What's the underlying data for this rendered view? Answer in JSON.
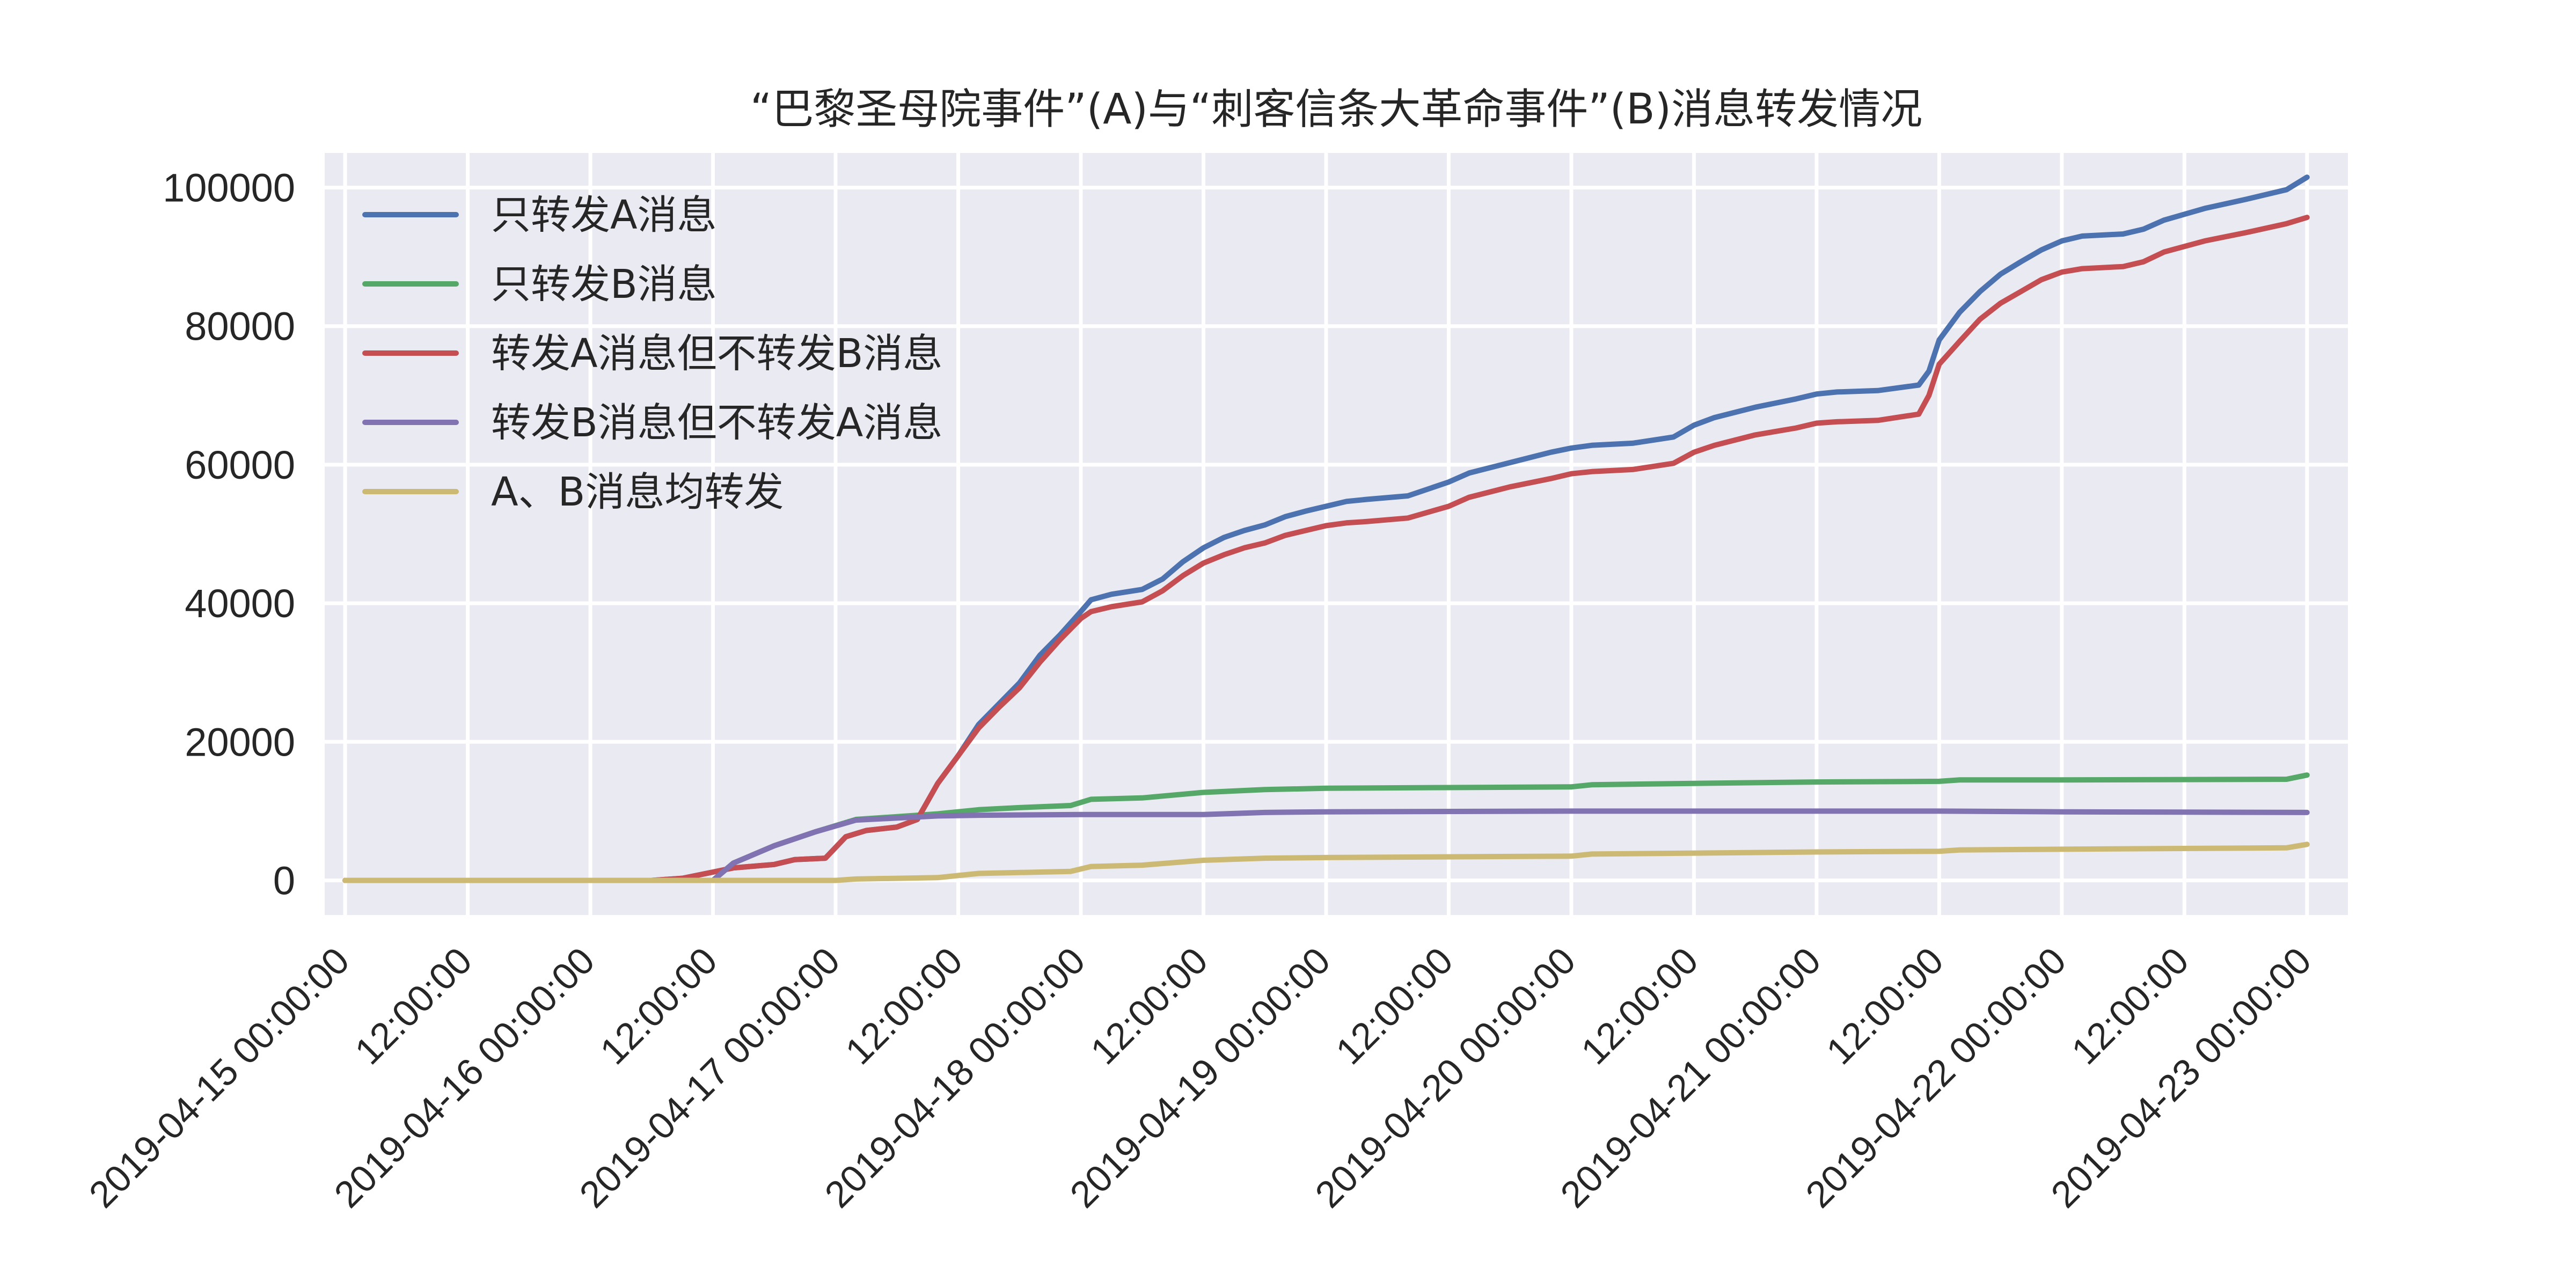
{
  "chart_data": {
    "type": "line",
    "title": "“巴黎圣母院事件”(A)与“刺客信条大革命事件”(B)消息转发情况",
    "xlabel": "",
    "ylabel": "",
    "x_range": [
      "2019-04-14 22:00:00",
      "2019-04-23 04:00:00"
    ],
    "ylim": [
      -5000,
      105000
    ],
    "grid": true,
    "legend_position": "upper-left",
    "background": "#eaeaf2",
    "x_ticks": [
      {
        "t": "2019-04-15 00:00:00",
        "label": "2019-04-15 00:00:00"
      },
      {
        "t": "2019-04-15 12:00:00",
        "label": "12:00:00"
      },
      {
        "t": "2019-04-16 00:00:00",
        "label": "2019-04-16 00:00:00"
      },
      {
        "t": "2019-04-16 12:00:00",
        "label": "12:00:00"
      },
      {
        "t": "2019-04-17 00:00:00",
        "label": "2019-04-17 00:00:00"
      },
      {
        "t": "2019-04-17 12:00:00",
        "label": "12:00:00"
      },
      {
        "t": "2019-04-18 00:00:00",
        "label": "2019-04-18 00:00:00"
      },
      {
        "t": "2019-04-18 12:00:00",
        "label": "12:00:00"
      },
      {
        "t": "2019-04-19 00:00:00",
        "label": "2019-04-19 00:00:00"
      },
      {
        "t": "2019-04-19 12:00:00",
        "label": "12:00:00"
      },
      {
        "t": "2019-04-20 00:00:00",
        "label": "2019-04-20 00:00:00"
      },
      {
        "t": "2019-04-20 12:00:00",
        "label": "12:00:00"
      },
      {
        "t": "2019-04-21 00:00:00",
        "label": "2019-04-21 00:00:00"
      },
      {
        "t": "2019-04-21 12:00:00",
        "label": "12:00:00"
      },
      {
        "t": "2019-04-22 00:00:00",
        "label": "2019-04-22 00:00:00"
      },
      {
        "t": "2019-04-22 12:00:00",
        "label": "12:00:00"
      },
      {
        "t": "2019-04-23 00:00:00",
        "label": "2019-04-23 00:00:00"
      }
    ],
    "y_ticks": [
      0,
      20000,
      40000,
      60000,
      80000,
      100000
    ],
    "series": [
      {
        "name": "只转发A消息",
        "color": "#4c72b0",
        "points": [
          [
            "2019-04-15 00:00:00",
            0
          ],
          [
            "2019-04-16 06:00:00",
            0
          ],
          [
            "2019-04-16 09:00:00",
            300
          ],
          [
            "2019-04-16 12:00:00",
            1200
          ],
          [
            "2019-04-16 14:00:00",
            1800
          ],
          [
            "2019-04-16 18:00:00",
            2300
          ],
          [
            "2019-04-16 20:00:00",
            3000
          ],
          [
            "2019-04-16 23:00:00",
            3200
          ],
          [
            "2019-04-17 01:00:00",
            6300
          ],
          [
            "2019-04-17 03:00:00",
            7200
          ],
          [
            "2019-04-17 06:00:00",
            7700
          ],
          [
            "2019-04-17 08:00:00",
            8800
          ],
          [
            "2019-04-17 10:00:00",
            14000
          ],
          [
            "2019-04-17 12:00:00",
            18000
          ],
          [
            "2019-04-17 14:00:00",
            22500
          ],
          [
            "2019-04-17 16:00:00",
            25500
          ],
          [
            "2019-04-17 18:00:00",
            28500
          ],
          [
            "2019-04-17 20:00:00",
            32500
          ],
          [
            "2019-04-17 22:00:00",
            35500
          ],
          [
            "2019-04-18 00:00:00",
            38800
          ],
          [
            "2019-04-18 01:00:00",
            40500
          ],
          [
            "2019-04-18 03:00:00",
            41300
          ],
          [
            "2019-04-18 06:00:00",
            42000
          ],
          [
            "2019-04-18 08:00:00",
            43500
          ],
          [
            "2019-04-18 10:00:00",
            46000
          ],
          [
            "2019-04-18 12:00:00",
            48000
          ],
          [
            "2019-04-18 14:00:00",
            49500
          ],
          [
            "2019-04-18 16:00:00",
            50500
          ],
          [
            "2019-04-18 18:00:00",
            51300
          ],
          [
            "2019-04-18 20:00:00",
            52500
          ],
          [
            "2019-04-18 22:00:00",
            53300
          ],
          [
            "2019-04-19 00:00:00",
            54000
          ],
          [
            "2019-04-19 02:00:00",
            54700
          ],
          [
            "2019-04-19 04:00:00",
            55000
          ],
          [
            "2019-04-19 08:00:00",
            55500
          ],
          [
            "2019-04-19 12:00:00",
            57500
          ],
          [
            "2019-04-19 14:00:00",
            58800
          ],
          [
            "2019-04-19 18:00:00",
            60300
          ],
          [
            "2019-04-19 22:00:00",
            61800
          ],
          [
            "2019-04-20 00:00:00",
            62400
          ],
          [
            "2019-04-20 02:00:00",
            62800
          ],
          [
            "2019-04-20 06:00:00",
            63100
          ],
          [
            "2019-04-20 10:00:00",
            64000
          ],
          [
            "2019-04-20 12:00:00",
            65700
          ],
          [
            "2019-04-20 14:00:00",
            66800
          ],
          [
            "2019-04-20 18:00:00",
            68300
          ],
          [
            "2019-04-20 22:00:00",
            69500
          ],
          [
            "2019-04-21 00:00:00",
            70200
          ],
          [
            "2019-04-21 02:00:00",
            70500
          ],
          [
            "2019-04-21 06:00:00",
            70700
          ],
          [
            "2019-04-21 10:00:00",
            71500
          ],
          [
            "2019-04-21 11:00:00",
            73500
          ],
          [
            "2019-04-21 12:00:00",
            78000
          ],
          [
            "2019-04-21 14:00:00",
            82000
          ],
          [
            "2019-04-21 16:00:00",
            85000
          ],
          [
            "2019-04-21 18:00:00",
            87500
          ],
          [
            "2019-04-21 20:00:00",
            89300
          ],
          [
            "2019-04-21 22:00:00",
            91000
          ],
          [
            "2019-04-22 00:00:00",
            92300
          ],
          [
            "2019-04-22 02:00:00",
            93000
          ],
          [
            "2019-04-22 06:00:00",
            93300
          ],
          [
            "2019-04-22 08:00:00",
            94000
          ],
          [
            "2019-04-22 10:00:00",
            95300
          ],
          [
            "2019-04-22 14:00:00",
            97000
          ],
          [
            "2019-04-22 18:00:00",
            98300
          ],
          [
            "2019-04-22 22:00:00",
            99700
          ],
          [
            "2019-04-23 00:00:00",
            101500
          ]
        ]
      },
      {
        "name": "只转发B消息",
        "color": "#55a868",
        "points": [
          [
            "2019-04-15 00:00:00",
            0
          ],
          [
            "2019-04-16 12:00:00",
            0
          ],
          [
            "2019-04-16 14:00:00",
            2500
          ],
          [
            "2019-04-16 18:00:00",
            5000
          ],
          [
            "2019-04-16 22:00:00",
            7000
          ],
          [
            "2019-04-17 02:00:00",
            8800
          ],
          [
            "2019-04-17 06:00:00",
            9200
          ],
          [
            "2019-04-17 10:00:00",
            9600
          ],
          [
            "2019-04-17 14:00:00",
            10200
          ],
          [
            "2019-04-17 18:00:00",
            10500
          ],
          [
            "2019-04-17 23:00:00",
            10800
          ],
          [
            "2019-04-18 01:00:00",
            11700
          ],
          [
            "2019-04-18 06:00:00",
            11900
          ],
          [
            "2019-04-18 12:00:00",
            12700
          ],
          [
            "2019-04-18 18:00:00",
            13100
          ],
          [
            "2019-04-19 00:00:00",
            13300
          ],
          [
            "2019-04-19 12:00:00",
            13400
          ],
          [
            "2019-04-20 00:00:00",
            13500
          ],
          [
            "2019-04-20 02:00:00",
            13800
          ],
          [
            "2019-04-20 12:00:00",
            14000
          ],
          [
            "2019-04-21 00:00:00",
            14200
          ],
          [
            "2019-04-21 12:00:00",
            14300
          ],
          [
            "2019-04-21 14:00:00",
            14500
          ],
          [
            "2019-04-22 00:00:00",
            14500
          ],
          [
            "2019-04-22 22:00:00",
            14600
          ],
          [
            "2019-04-23 00:00:00",
            15200
          ]
        ]
      },
      {
        "name": "转发A消息但不转发B消息",
        "color": "#c44e52",
        "points": [
          [
            "2019-04-15 00:00:00",
            0
          ],
          [
            "2019-04-16 06:00:00",
            0
          ],
          [
            "2019-04-16 09:00:00",
            300
          ],
          [
            "2019-04-16 12:00:00",
            1200
          ],
          [
            "2019-04-16 14:00:00",
            1800
          ],
          [
            "2019-04-16 18:00:00",
            2300
          ],
          [
            "2019-04-16 20:00:00",
            3000
          ],
          [
            "2019-04-16 23:00:00",
            3200
          ],
          [
            "2019-04-17 01:00:00",
            6300
          ],
          [
            "2019-04-17 03:00:00",
            7200
          ],
          [
            "2019-04-17 06:00:00",
            7700
          ],
          [
            "2019-04-17 08:00:00",
            8800
          ],
          [
            "2019-04-17 10:00:00",
            14000
          ],
          [
            "2019-04-17 12:00:00",
            18000
          ],
          [
            "2019-04-17 14:00:00",
            22000
          ],
          [
            "2019-04-17 16:00:00",
            25000
          ],
          [
            "2019-04-17 18:00:00",
            27800
          ],
          [
            "2019-04-17 20:00:00",
            31500
          ],
          [
            "2019-04-17 22:00:00",
            34800
          ],
          [
            "2019-04-18 00:00:00",
            37800
          ],
          [
            "2019-04-18 01:00:00",
            38800
          ],
          [
            "2019-04-18 03:00:00",
            39500
          ],
          [
            "2019-04-18 06:00:00",
            40200
          ],
          [
            "2019-04-18 08:00:00",
            41800
          ],
          [
            "2019-04-18 10:00:00",
            44000
          ],
          [
            "2019-04-18 12:00:00",
            45800
          ],
          [
            "2019-04-18 14:00:00",
            47000
          ],
          [
            "2019-04-18 16:00:00",
            48000
          ],
          [
            "2019-04-18 18:00:00",
            48700
          ],
          [
            "2019-04-18 20:00:00",
            49800
          ],
          [
            "2019-04-18 22:00:00",
            50500
          ],
          [
            "2019-04-19 00:00:00",
            51200
          ],
          [
            "2019-04-19 02:00:00",
            51600
          ],
          [
            "2019-04-19 04:00:00",
            51800
          ],
          [
            "2019-04-19 08:00:00",
            52300
          ],
          [
            "2019-04-19 12:00:00",
            54000
          ],
          [
            "2019-04-19 14:00:00",
            55300
          ],
          [
            "2019-04-19 18:00:00",
            56800
          ],
          [
            "2019-04-19 22:00:00",
            58000
          ],
          [
            "2019-04-20 00:00:00",
            58700
          ],
          [
            "2019-04-20 02:00:00",
            59000
          ],
          [
            "2019-04-20 06:00:00",
            59300
          ],
          [
            "2019-04-20 10:00:00",
            60200
          ],
          [
            "2019-04-20 12:00:00",
            61800
          ],
          [
            "2019-04-20 14:00:00",
            62800
          ],
          [
            "2019-04-20 18:00:00",
            64300
          ],
          [
            "2019-04-20 22:00:00",
            65300
          ],
          [
            "2019-04-21 00:00:00",
            66000
          ],
          [
            "2019-04-21 02:00:00",
            66200
          ],
          [
            "2019-04-21 06:00:00",
            66400
          ],
          [
            "2019-04-21 10:00:00",
            67300
          ],
          [
            "2019-04-21 11:00:00",
            70000
          ],
          [
            "2019-04-21 12:00:00",
            74500
          ],
          [
            "2019-04-21 14:00:00",
            77800
          ],
          [
            "2019-04-21 16:00:00",
            81000
          ],
          [
            "2019-04-21 18:00:00",
            83300
          ],
          [
            "2019-04-21 20:00:00",
            85000
          ],
          [
            "2019-04-21 22:00:00",
            86700
          ],
          [
            "2019-04-22 00:00:00",
            87800
          ],
          [
            "2019-04-22 02:00:00",
            88300
          ],
          [
            "2019-04-22 06:00:00",
            88600
          ],
          [
            "2019-04-22 08:00:00",
            89300
          ],
          [
            "2019-04-22 10:00:00",
            90700
          ],
          [
            "2019-04-22 14:00:00",
            92300
          ],
          [
            "2019-04-22 18:00:00",
            93500
          ],
          [
            "2019-04-22 22:00:00",
            94800
          ],
          [
            "2019-04-23 00:00:00",
            95700
          ]
        ]
      },
      {
        "name": "转发B消息但不转发A消息",
        "color": "#8172b2",
        "points": [
          [
            "2019-04-15 00:00:00",
            0
          ],
          [
            "2019-04-16 12:00:00",
            0
          ],
          [
            "2019-04-16 14:00:00",
            2500
          ],
          [
            "2019-04-16 18:00:00",
            5000
          ],
          [
            "2019-04-16 22:00:00",
            7000
          ],
          [
            "2019-04-17 02:00:00",
            8700
          ],
          [
            "2019-04-17 06:00:00",
            9000
          ],
          [
            "2019-04-17 10:00:00",
            9300
          ],
          [
            "2019-04-17 14:00:00",
            9400
          ],
          [
            "2019-04-18 00:00:00",
            9500
          ],
          [
            "2019-04-18 12:00:00",
            9500
          ],
          [
            "2019-04-18 18:00:00",
            9800
          ],
          [
            "2019-04-19 00:00:00",
            9900
          ],
          [
            "2019-04-20 00:00:00",
            10000
          ],
          [
            "2019-04-21 00:00:00",
            10000
          ],
          [
            "2019-04-21 12:00:00",
            10000
          ],
          [
            "2019-04-22 00:00:00",
            9900
          ],
          [
            "2019-04-23 00:00:00",
            9800
          ]
        ]
      },
      {
        "name": "A、B消息均转发",
        "color": "#ccb974",
        "points": [
          [
            "2019-04-15 00:00:00",
            0
          ],
          [
            "2019-04-17 00:00:00",
            0
          ],
          [
            "2019-04-17 02:00:00",
            200
          ],
          [
            "2019-04-17 10:00:00",
            400
          ],
          [
            "2019-04-17 12:00:00",
            700
          ],
          [
            "2019-04-17 14:00:00",
            1000
          ],
          [
            "2019-04-17 23:00:00",
            1300
          ],
          [
            "2019-04-18 01:00:00",
            2000
          ],
          [
            "2019-04-18 06:00:00",
            2200
          ],
          [
            "2019-04-18 12:00:00",
            2900
          ],
          [
            "2019-04-18 18:00:00",
            3200
          ],
          [
            "2019-04-19 00:00:00",
            3300
          ],
          [
            "2019-04-20 00:00:00",
            3500
          ],
          [
            "2019-04-20 02:00:00",
            3800
          ],
          [
            "2019-04-21 00:00:00",
            4100
          ],
          [
            "2019-04-21 12:00:00",
            4200
          ],
          [
            "2019-04-21 14:00:00",
            4400
          ],
          [
            "2019-04-22 00:00:00",
            4500
          ],
          [
            "2019-04-22 22:00:00",
            4700
          ],
          [
            "2019-04-23 00:00:00",
            5200
          ]
        ]
      }
    ]
  }
}
